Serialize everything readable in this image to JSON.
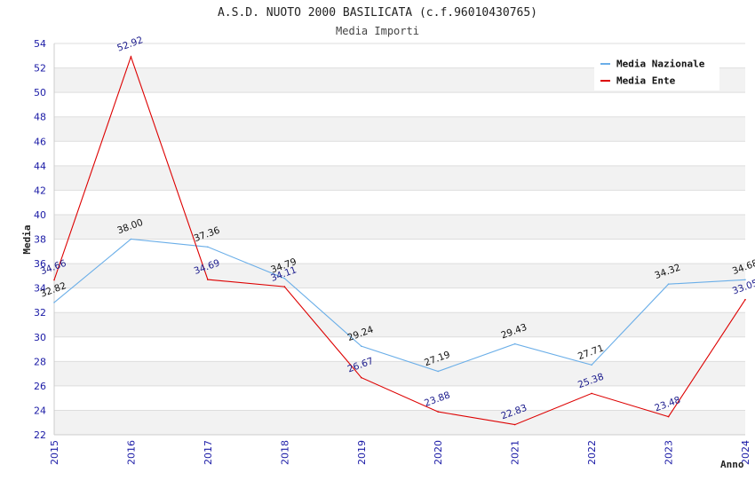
{
  "chart_data": {
    "type": "line",
    "title": "A.S.D. NUOTO 2000 BASILICATA (c.f.96010430765)",
    "subtitle": "Media Importi",
    "xlabel": "Anno",
    "ylabel": "Media",
    "x": [
      "2015",
      "2016",
      "2017",
      "2018",
      "2019",
      "2020",
      "2021",
      "2022",
      "2023",
      "2024"
    ],
    "ylim": [
      22,
      54
    ],
    "yticks": [
      "22",
      "24",
      "26",
      "28",
      "30",
      "32",
      "34",
      "36",
      "38",
      "40",
      "42",
      "44",
      "46",
      "48",
      "50",
      "52",
      "54"
    ],
    "grid": true,
    "legend_position": "top-right",
    "series": [
      {
        "name": "Media Nazionale",
        "color": "#6aaee8",
        "label_color": "#111111",
        "values": [
          32.82,
          38.0,
          37.36,
          34.79,
          29.24,
          27.19,
          29.43,
          27.71,
          34.32,
          34.68
        ],
        "labels": [
          "32.82",
          "38.00",
          "37.36",
          "34.79",
          "29.24",
          "27.19",
          "29.43",
          "27.71",
          "34.32",
          "34.68"
        ]
      },
      {
        "name": "Media Ente",
        "color": "#dd0000",
        "label_color": "#1a1a8c",
        "values": [
          34.66,
          52.92,
          34.69,
          34.11,
          26.67,
          23.88,
          22.83,
          25.38,
          23.48,
          33.05
        ],
        "labels": [
          "34.66",
          "52.92",
          "34.69",
          "34.11",
          "26.67",
          "23.88",
          "22.83",
          "25.38",
          "23.48",
          "33.05"
        ]
      }
    ]
  }
}
